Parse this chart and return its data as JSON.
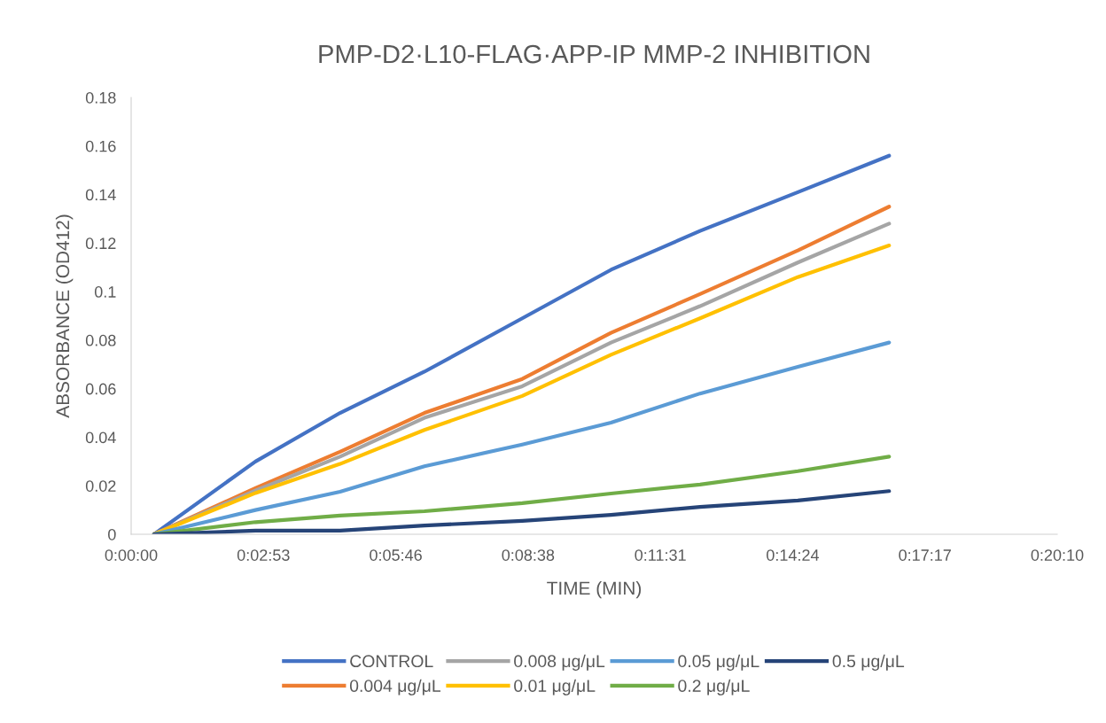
{
  "chart_data": {
    "type": "line",
    "title": "PMP-D2·L10-FLAG·APP-IP MMP-2 INHIBITION",
    "xlabel": "TIME (MIN)",
    "ylabel": "ABSORBANCE (OD412)",
    "x": [
      0.0083,
      0.0451,
      0.0758,
      0.1064,
      0.1419,
      0.1741,
      0.2064,
      0.2419,
      0.275
    ],
    "series": [
      {
        "name": "CONTROL",
        "color": "#4472c4",
        "values": [
          0,
          0.03,
          0.05,
          0.067,
          0.089,
          0.109,
          0.125,
          0.141,
          0.156
        ]
      },
      {
        "name": "0.004 μg/μL",
        "color": "#ed7d31",
        "values": [
          0,
          0.019,
          0.034,
          0.05,
          0.064,
          0.083,
          0.099,
          0.117,
          0.135
        ]
      },
      {
        "name": "0.008 μg/μL",
        "color": "#a5a5a5",
        "values": [
          0,
          0.018,
          0.032,
          0.048,
          0.061,
          0.079,
          0.094,
          0.112,
          0.128
        ]
      },
      {
        "name": "0.01 μg/μL",
        "color": "#ffc000",
        "values": [
          0,
          0.017,
          0.029,
          0.043,
          0.057,
          0.074,
          0.089,
          0.106,
          0.119
        ]
      },
      {
        "name": "0.05 μg/μL",
        "color": "#5b9bd5",
        "values": [
          0,
          0.01,
          0.0175,
          0.028,
          0.037,
          0.046,
          0.058,
          0.069,
          0.079
        ]
      },
      {
        "name": "0.2 μg/μL",
        "color": "#70ad47",
        "values": [
          0,
          0.005,
          0.0077,
          0.0095,
          0.0128,
          0.0168,
          0.0205,
          0.026,
          0.032
        ]
      },
      {
        "name": "0.5 μg/μL",
        "color": "#264478",
        "values": [
          0,
          0.0015,
          0.0015,
          0.0036,
          0.0055,
          0.008,
          0.0113,
          0.0139,
          0.0178
        ]
      }
    ],
    "xlim": [
      0,
      0.336
    ],
    "xticks": [
      {
        "value": 0,
        "label": "0:00:00"
      },
      {
        "value": 0.048,
        "label": "0:02:53"
      },
      {
        "value": 0.096,
        "label": "0:05:46"
      },
      {
        "value": 0.144,
        "label": "0:08:38"
      },
      {
        "value": 0.192,
        "label": "0:11:31"
      },
      {
        "value": 0.24,
        "label": "0:14:24"
      },
      {
        "value": 0.288,
        "label": "0:17:17"
      },
      {
        "value": 0.336,
        "label": "0:20:10"
      }
    ],
    "ylim": [
      0,
      0.18
    ],
    "yticks": [
      0,
      0.02,
      0.04,
      0.06,
      0.08,
      0.1,
      0.12,
      0.14,
      0.16,
      0.18
    ],
    "legend": "bottom",
    "grid": false,
    "marker": "none",
    "line_style": "solid"
  }
}
